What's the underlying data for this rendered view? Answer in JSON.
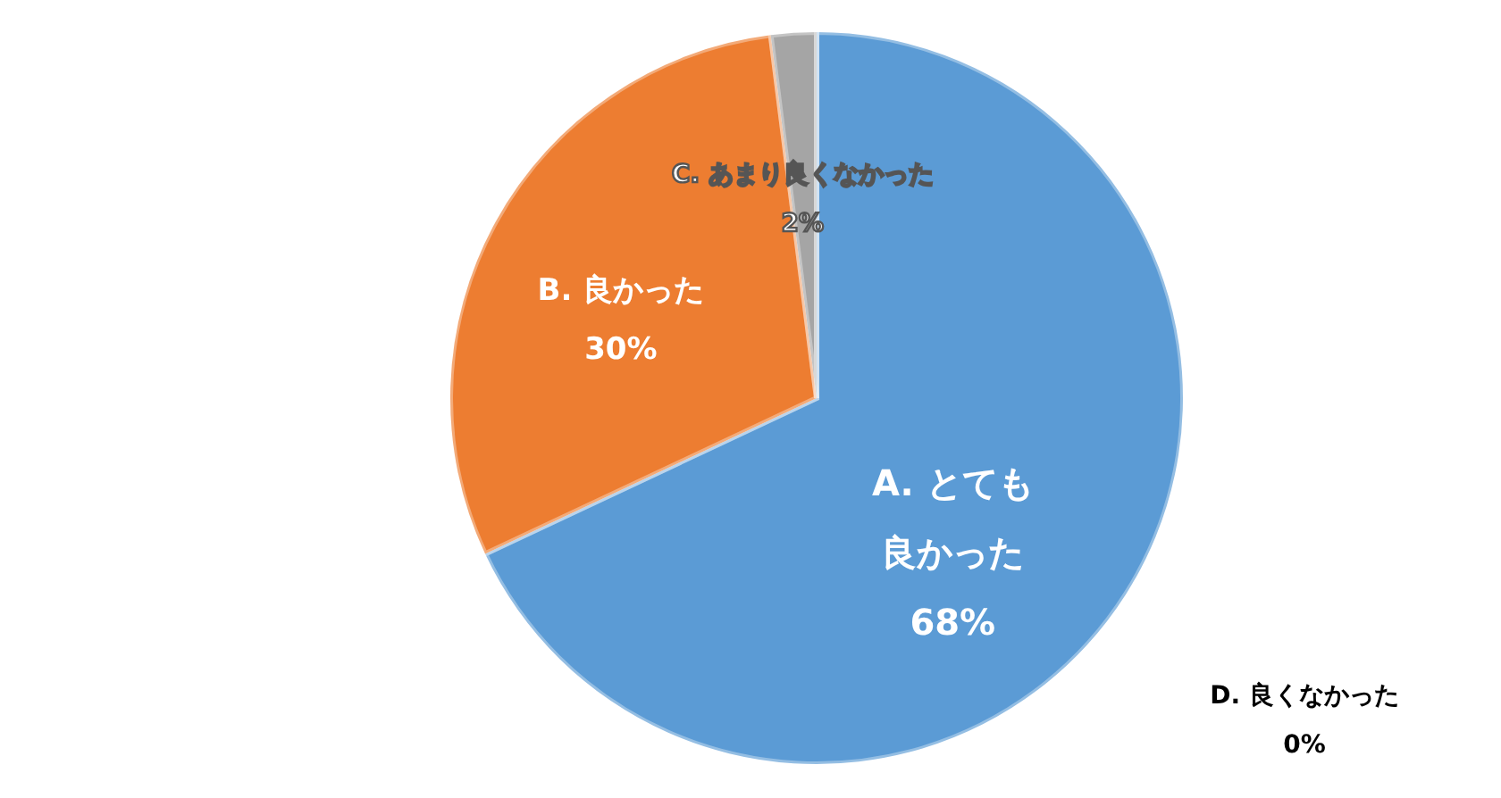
{
  "chart_data": {
    "type": "pie",
    "categories": [
      "A. とても良かった",
      "B. 良かった",
      "C. あまり良くなかった",
      "D. 良くなかった"
    ],
    "values": [
      68,
      30,
      2,
      0
    ],
    "colors": [
      "#5b9bd5",
      "#ed7d31",
      "#a5a5a5",
      "#ffc000"
    ],
    "value_labels": [
      "68%",
      "30%",
      "2%",
      "0%"
    ]
  }
}
